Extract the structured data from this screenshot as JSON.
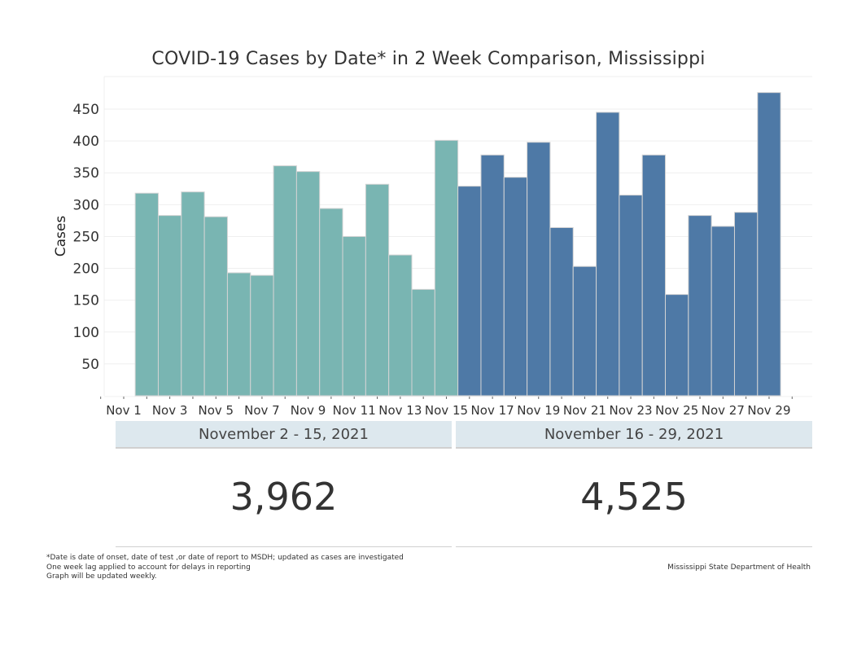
{
  "chart_data": {
    "type": "bar",
    "title": "COVID-19 Cases by Date* in 2 Week Comparison, Mississippi",
    "xlabel": "",
    "ylabel": "Cases",
    "ylim": [
      0,
      500
    ],
    "yticks": [
      50,
      100,
      150,
      200,
      250,
      300,
      350,
      400,
      450
    ],
    "xlim_days": [
      "Oct 31",
      "Nov 30"
    ],
    "xtick_labels": [
      "Nov 1",
      "Nov 3",
      "Nov 5",
      "Nov 7",
      "Nov 9",
      "Nov 11",
      "Nov 13",
      "Nov 15",
      "Nov 17",
      "Nov 19",
      "Nov 21",
      "Nov 23",
      "Nov 25",
      "Nov 27",
      "Nov 29"
    ],
    "grid": true,
    "series": [
      {
        "name": "November 2 - 15, 2021",
        "color": "#79b5b2",
        "days": [
          2,
          3,
          4,
          5,
          6,
          7,
          8,
          9,
          10,
          11,
          12,
          13,
          14,
          15
        ],
        "values": [
          318,
          283,
          320,
          281,
          193,
          189,
          361,
          352,
          294,
          250,
          332,
          221,
          167,
          401
        ]
      },
      {
        "name": "November 16 - 29, 2021",
        "color": "#4e79a6",
        "days": [
          16,
          17,
          18,
          19,
          20,
          21,
          22,
          23,
          24,
          25,
          26,
          27,
          28,
          29
        ],
        "values": [
          329,
          378,
          343,
          398,
          264,
          203,
          445,
          315,
          378,
          159,
          283,
          266,
          288,
          476
        ]
      }
    ]
  },
  "summary": {
    "period1": {
      "label": "November 2 - 15, 2021",
      "total": "3,962"
    },
    "period2": {
      "label": "November 16 - 29, 2021",
      "total": "4,525"
    }
  },
  "footnotes": [
    "*Date is date of onset, date of test ,or date of report to MSDH; updated as cases are investigated",
    "One week lag applied to account for delays in reporting",
    "Graph will be updated weekly."
  ],
  "source": "Mississippi State Department of Health"
}
